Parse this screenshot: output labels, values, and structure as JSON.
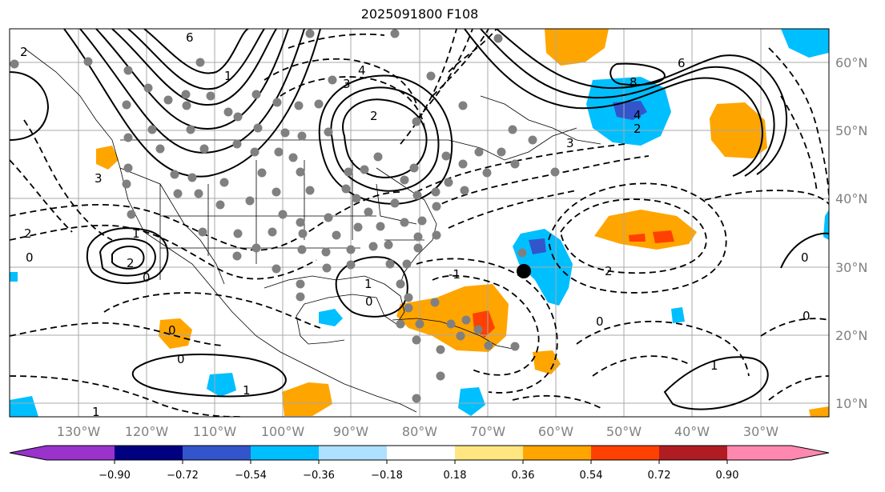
{
  "title": "2025091800 F108",
  "map": {
    "lon_labels": [
      "130°W",
      "120°W",
      "110°W",
      "100°W",
      "90°W",
      "80°W",
      "70°W",
      "60°W",
      "50°W",
      "40°W",
      "30°W"
    ],
    "lat_labels": [
      "60°N",
      "50°N",
      "40°N",
      "30°N",
      "20°N",
      "10°N"
    ],
    "contour_labels": [
      "6",
      "2",
      "4",
      "3",
      "1",
      "2",
      "3",
      "6",
      "8",
      "4",
      "2",
      "3",
      "2",
      "0",
      "1",
      "0",
      "2",
      "0",
      "-1",
      "1",
      "0",
      "0",
      "1",
      "0",
      "0",
      "1",
      "2",
      "1",
      "0"
    ],
    "colors": {
      "ocean": "#ffffff",
      "gridline": "#a8a8a8",
      "contour": "#000000",
      "station": "#808080"
    }
  },
  "colorbar": {
    "ticks": [
      "−0.90",
      "−0.72",
      "−0.54",
      "−0.36",
      "−0.18",
      "0.18",
      "0.36",
      "0.54",
      "0.72",
      "0.90"
    ],
    "colors": [
      "#9933cc",
      "#000080",
      "#3355cc",
      "#00bfff",
      "#aee0ff",
      "#ffffff",
      "#ffe680",
      "#ffa500",
      "#ff4000",
      "#b01c22",
      "#ff88b0"
    ]
  }
}
